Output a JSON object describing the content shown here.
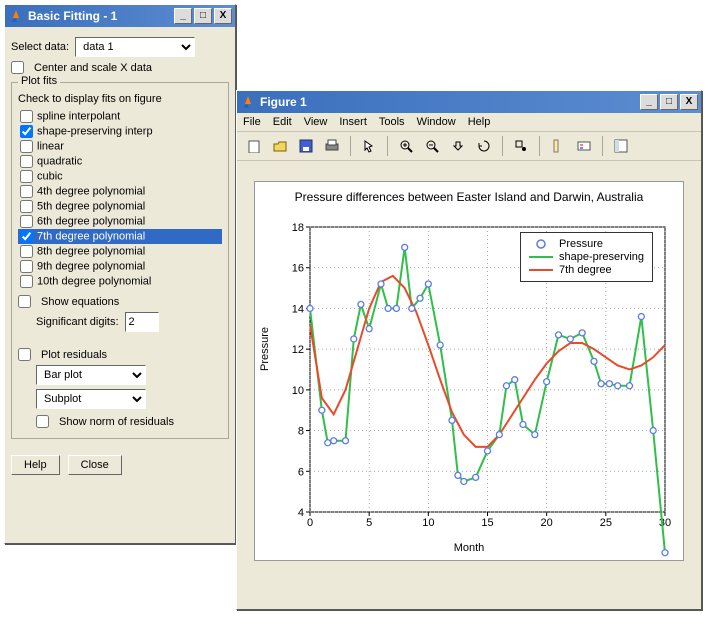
{
  "basic_fitting_window": {
    "title": "Basic Fitting - 1",
    "select_data_label": "Select data:",
    "select_data_value": "data 1",
    "center_scale_label": "Center and scale X data",
    "plot_fits_group": "Plot fits",
    "check_display_label": "Check to display fits on figure",
    "fit_options": [
      {
        "label": "spline interpolant",
        "checked": false,
        "selected": false
      },
      {
        "label": "shape-preserving interp",
        "checked": true,
        "selected": false
      },
      {
        "label": "linear",
        "checked": false,
        "selected": false
      },
      {
        "label": "quadratic",
        "checked": false,
        "selected": false
      },
      {
        "label": "cubic",
        "checked": false,
        "selected": false
      },
      {
        "label": "4th degree polynomial",
        "checked": false,
        "selected": false
      },
      {
        "label": "5th degree polynomial",
        "checked": false,
        "selected": false
      },
      {
        "label": "6th degree polynomial",
        "checked": false,
        "selected": false
      },
      {
        "label": "7th degree polynomial",
        "checked": true,
        "selected": true
      },
      {
        "label": "8th degree polynomial",
        "checked": false,
        "selected": false
      },
      {
        "label": "9th degree polynomial",
        "checked": false,
        "selected": false
      },
      {
        "label": "10th degree polynomial",
        "checked": false,
        "selected": false
      }
    ],
    "show_equations_label": "Show equations",
    "sig_digits_label": "Significant digits:",
    "sig_digits_value": "2",
    "plot_residuals_label": "Plot residuals",
    "residual_type": "Bar plot",
    "residual_placement": "Subplot",
    "show_norm_label": "Show norm of residuals",
    "help_btn": "Help",
    "close_btn": "Close"
  },
  "figure_window": {
    "title": "Figure 1",
    "menu": [
      "File",
      "Edit",
      "View",
      "Insert",
      "Tools",
      "Window",
      "Help"
    ],
    "chart": {
      "type": "line+scatter",
      "title": "Pressure differences between Easter Island and Darwin, Australia",
      "xlabel": "Month",
      "ylabel": "Pressure",
      "title_fontsize": 12,
      "label_fontsize": 11,
      "background_color": "#ffffff",
      "grid_color": "#888888",
      "xlim": [
        0,
        30
      ],
      "ylim": [
        4,
        18
      ],
      "xticks": [
        0,
        5,
        10,
        15,
        20,
        25,
        30
      ],
      "yticks": [
        4,
        6,
        8,
        10,
        12,
        14,
        16,
        18
      ],
      "legend_position": "top-right",
      "legend_items": [
        {
          "label": "Pressure",
          "style": "marker",
          "color": "#5b7be6"
        },
        {
          "label": "shape-preserving",
          "style": "line",
          "color": "#2fbf4a",
          "width": 2
        },
        {
          "label": "7th degree",
          "style": "line",
          "color": "#e84b2c",
          "width": 2
        }
      ],
      "scatter": {
        "x": [
          0,
          1,
          1.5,
          2,
          3,
          3.7,
          4.3,
          5,
          6,
          6.6,
          7.3,
          8,
          8.6,
          9.3,
          10,
          11,
          12,
          12.5,
          13,
          14,
          15,
          16,
          16.6,
          17.3,
          18,
          19,
          20,
          21,
          22,
          23,
          24,
          24.6,
          25.3,
          26,
          27,
          28,
          29,
          30
        ],
        "y": [
          14,
          9,
          7.4,
          7.5,
          7.5,
          12.5,
          14.2,
          13,
          15.2,
          14,
          14,
          17,
          14,
          14.5,
          15.2,
          12.2,
          8.5,
          5.8,
          5.5,
          5.7,
          7,
          7.8,
          10.2,
          10.5,
          8.3,
          7.8,
          10.4,
          12.7,
          12.5,
          12.8,
          11.4,
          10.3,
          10.3,
          10.2,
          10.2,
          13.6,
          8,
          2
        ],
        "color": "#5b7be6",
        "marker": "circle-open",
        "marker_size": 6
      },
      "shape_preserving": {
        "color": "#2fbf4a",
        "width": 2
      },
      "seventh_degree": {
        "x": [
          0,
          1,
          2,
          3,
          4,
          5,
          6,
          7,
          8,
          9,
          10,
          11,
          12,
          13,
          14,
          15,
          16,
          17,
          18,
          19,
          20,
          21,
          22,
          23,
          24,
          25,
          26,
          27,
          28,
          29,
          30
        ],
        "y": [
          13.2,
          9.6,
          8.8,
          10.0,
          12.0,
          14.0,
          15.3,
          15.6,
          15.0,
          13.8,
          12.2,
          10.5,
          8.9,
          7.8,
          7.2,
          7.2,
          7.8,
          8.7,
          9.6,
          10.5,
          11.3,
          11.9,
          12.3,
          12.3,
          12.0,
          11.6,
          11.2,
          11.0,
          11.2,
          11.6,
          12.2
        ],
        "color": "#e84b2c",
        "width": 2
      }
    }
  }
}
